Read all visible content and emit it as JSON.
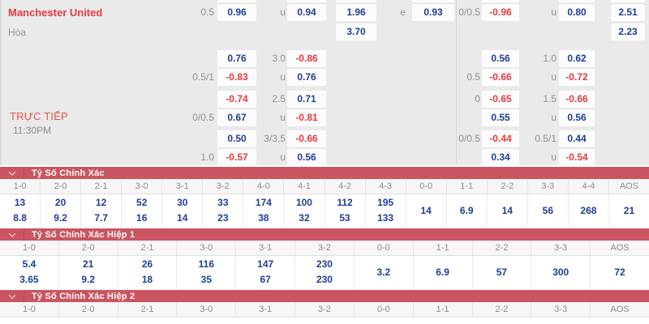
{
  "colors": {
    "bar_red": "#ca5560",
    "pos_blue": "#1e3e96",
    "neg_red": "#e83a40",
    "team_red": "#e8393f",
    "live_red": "#e25449",
    "panel_gray": "#eaeaea"
  },
  "top_panel": {
    "home_team": "Manchester United",
    "draw_label": "Hòa",
    "live_label": "TRỰC TIẾP",
    "time_label": "11:30PM",
    "cells": [
      {
        "r": 0,
        "c": "hdpL",
        "t": "0.5",
        "k": "label"
      },
      {
        "r": 0,
        "c": "box1",
        "t": "0.96",
        "k": "pos"
      },
      {
        "r": 0,
        "c": "ouL",
        "t": "u",
        "k": "label"
      },
      {
        "r": 0,
        "c": "box2",
        "t": "0.94",
        "k": "pos"
      },
      {
        "r": 0,
        "c": "x12",
        "t": "1.96",
        "k": "pos"
      },
      {
        "r": 0,
        "c": "eL",
        "t": "e",
        "k": "label"
      },
      {
        "r": 0,
        "c": "boxE",
        "t": "0.93",
        "k": "pos"
      },
      {
        "r": 0,
        "c": "hdpR",
        "t": "0/0.5",
        "k": "label"
      },
      {
        "r": 0,
        "c": "boxR1",
        "t": "-0.96",
        "k": "neg"
      },
      {
        "r": 0,
        "c": "ouR",
        "t": "u",
        "k": "label"
      },
      {
        "r": 0,
        "c": "boxR2",
        "t": "0.80",
        "k": "pos"
      },
      {
        "r": 0,
        "c": "boxL2",
        "t": "2.51",
        "k": "pos"
      },
      {
        "r": 1,
        "c": "x12",
        "t": "3.70",
        "k": "pos"
      },
      {
        "r": 1,
        "c": "boxL2",
        "t": "2.23",
        "k": "pos"
      },
      {
        "r": 2,
        "c": "box1",
        "t": "0.76",
        "k": "pos"
      },
      {
        "r": 2,
        "c": "ouL",
        "t": "3.0",
        "k": "label"
      },
      {
        "r": 2,
        "c": "box2",
        "t": "-0.86",
        "k": "neg"
      },
      {
        "r": 2,
        "c": "boxR1",
        "t": "0.56",
        "k": "pos"
      },
      {
        "r": 2,
        "c": "ouR",
        "t": "1.0",
        "k": "label"
      },
      {
        "r": 2,
        "c": "boxR2",
        "t": "0.62",
        "k": "pos"
      },
      {
        "r": 3,
        "c": "hdpL",
        "t": "0.5/1",
        "k": "label"
      },
      {
        "r": 3,
        "c": "box1",
        "t": "-0.83",
        "k": "neg"
      },
      {
        "r": 3,
        "c": "ouL",
        "t": "u",
        "k": "label"
      },
      {
        "r": 3,
        "c": "box2",
        "t": "0.76",
        "k": "pos"
      },
      {
        "r": 3,
        "c": "hdpR",
        "t": "0.5",
        "k": "label"
      },
      {
        "r": 3,
        "c": "boxR1",
        "t": "-0.66",
        "k": "neg"
      },
      {
        "r": 3,
        "c": "ouR",
        "t": "u",
        "k": "label"
      },
      {
        "r": 3,
        "c": "boxR2",
        "t": "-0.72",
        "k": "neg"
      },
      {
        "r": 4,
        "c": "box1",
        "t": "-0.74",
        "k": "neg"
      },
      {
        "r": 4,
        "c": "ouL",
        "t": "2.5",
        "k": "label"
      },
      {
        "r": 4,
        "c": "box2",
        "t": "0.71",
        "k": "pos"
      },
      {
        "r": 4,
        "c": "hdpR",
        "t": "0",
        "k": "label"
      },
      {
        "r": 4,
        "c": "boxR1",
        "t": "-0.65",
        "k": "neg"
      },
      {
        "r": 4,
        "c": "ouR",
        "t": "1.5",
        "k": "label"
      },
      {
        "r": 4,
        "c": "boxR2",
        "t": "-0.66",
        "k": "neg"
      },
      {
        "r": 5,
        "c": "hdpL",
        "t": "0/0.5",
        "k": "label"
      },
      {
        "r": 5,
        "c": "box1",
        "t": "0.67",
        "k": "pos"
      },
      {
        "r": 5,
        "c": "ouL",
        "t": "u",
        "k": "label"
      },
      {
        "r": 5,
        "c": "box2",
        "t": "-0.81",
        "k": "neg"
      },
      {
        "r": 5,
        "c": "boxR1",
        "t": "0.55",
        "k": "pos"
      },
      {
        "r": 5,
        "c": "ouR",
        "t": "u",
        "k": "label"
      },
      {
        "r": 5,
        "c": "boxR2",
        "t": "0.56",
        "k": "pos"
      },
      {
        "r": 6,
        "c": "box1",
        "t": "0.50",
        "k": "pos"
      },
      {
        "r": 6,
        "c": "ouL",
        "t": "3/3.5",
        "k": "label"
      },
      {
        "r": 6,
        "c": "box2",
        "t": "-0.66",
        "k": "neg"
      },
      {
        "r": 6,
        "c": "hdpR",
        "t": "0/0.5",
        "k": "label"
      },
      {
        "r": 6,
        "c": "boxR1",
        "t": "-0.44",
        "k": "neg"
      },
      {
        "r": 6,
        "c": "ouR",
        "t": "0.5/1",
        "k": "label"
      },
      {
        "r": 6,
        "c": "boxR2",
        "t": "0.44",
        "k": "pos"
      },
      {
        "r": 7,
        "c": "hdpL",
        "t": "1.0",
        "k": "label"
      },
      {
        "r": 7,
        "c": "box1",
        "t": "-0.57",
        "k": "neg"
      },
      {
        "r": 7,
        "c": "ouL",
        "t": "u",
        "k": "label"
      },
      {
        "r": 7,
        "c": "box2",
        "t": "0.56",
        "k": "pos"
      },
      {
        "r": 7,
        "c": "boxR1",
        "t": "0.34",
        "k": "pos"
      },
      {
        "r": 7,
        "c": "ouR",
        "t": "u",
        "k": "label"
      },
      {
        "r": 7,
        "c": "boxR2",
        "t": "-0.54",
        "k": "neg"
      }
    ]
  },
  "sections": [
    {
      "title": "Tỷ Số Chính Xác",
      "columns": [
        {
          "score": "1-0",
          "values": [
            "13",
            "8.8"
          ]
        },
        {
          "score": "2-0",
          "values": [
            "20",
            "9.2"
          ]
        },
        {
          "score": "2-1",
          "values": [
            "12",
            "7.7"
          ]
        },
        {
          "score": "3-0",
          "values": [
            "52",
            "16"
          ]
        },
        {
          "score": "3-1",
          "values": [
            "30",
            "14"
          ]
        },
        {
          "score": "3-2",
          "values": [
            "33",
            "23"
          ]
        },
        {
          "score": "4-0",
          "values": [
            "174",
            "38"
          ]
        },
        {
          "score": "4-1",
          "values": [
            "100",
            "32"
          ]
        },
        {
          "score": "4-2",
          "values": [
            "112",
            "53"
          ]
        },
        {
          "score": "4-3",
          "values": [
            "195",
            "133"
          ]
        },
        {
          "score": "0-0",
          "values": [
            "14"
          ]
        },
        {
          "score": "1-1",
          "values": [
            "6.9"
          ]
        },
        {
          "score": "2-2",
          "values": [
            "14"
          ]
        },
        {
          "score": "3-3",
          "values": [
            "56"
          ]
        },
        {
          "score": "4-4",
          "values": [
            "268"
          ]
        },
        {
          "score": "AOS",
          "values": [
            "21"
          ]
        }
      ]
    },
    {
      "title": "Tỷ Số Chính Xác Hiệp 1",
      "columns": [
        {
          "score": "1-0",
          "values": [
            "5.4",
            "3.65"
          ]
        },
        {
          "score": "2-0",
          "values": [
            "21",
            "9.2"
          ]
        },
        {
          "score": "2-1",
          "values": [
            "26",
            "18"
          ]
        },
        {
          "score": "3-0",
          "values": [
            "116",
            "35"
          ]
        },
        {
          "score": "3-1",
          "values": [
            "147",
            "67"
          ]
        },
        {
          "score": "3-2",
          "values": [
            "230",
            "230"
          ]
        },
        {
          "score": "0-0",
          "values": [
            "3.2"
          ]
        },
        {
          "score": "1-1",
          "values": [
            "6.9"
          ]
        },
        {
          "score": "2-2",
          "values": [
            "57"
          ]
        },
        {
          "score": "3-3",
          "values": [
            "300"
          ]
        },
        {
          "score": "AOS",
          "values": [
            "72"
          ]
        }
      ]
    },
    {
      "title": "Tỷ Số Chính Xác Hiệp 2",
      "columns": [
        {
          "score": "1-0",
          "values": []
        },
        {
          "score": "2-0",
          "values": []
        },
        {
          "score": "2-1",
          "values": []
        },
        {
          "score": "3-0",
          "values": []
        },
        {
          "score": "3-1",
          "values": []
        },
        {
          "score": "3-2",
          "values": []
        },
        {
          "score": "0-0",
          "values": []
        },
        {
          "score": "1-1",
          "values": []
        },
        {
          "score": "2-2",
          "values": []
        },
        {
          "score": "3-3",
          "values": []
        },
        {
          "score": "AOS",
          "values": []
        }
      ]
    }
  ]
}
